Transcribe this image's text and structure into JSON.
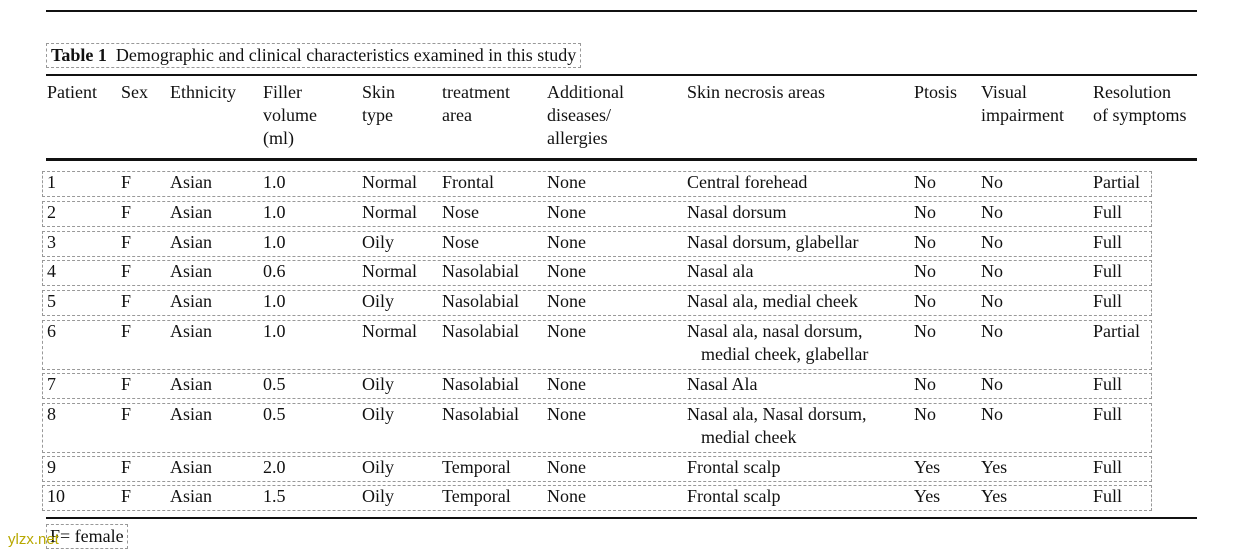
{
  "table": {
    "caption": {
      "label": "Table 1",
      "text": "Demographic and clinical characteristics examined in this study"
    },
    "header": [
      [
        "Patient"
      ],
      [
        "Sex"
      ],
      [
        "Ethnicity"
      ],
      [
        "Filler",
        "volume",
        "(ml)"
      ],
      [
        "Skin",
        "type"
      ],
      [
        "treatment",
        "area"
      ],
      [
        "Additional",
        "diseases/",
        "allergies"
      ],
      [
        "Skin necrosis areas"
      ],
      [
        "Ptosis"
      ],
      [
        "Visual",
        "impairment"
      ],
      [
        "Resolution",
        "of symptoms"
      ]
    ],
    "rows": [
      [
        "1",
        "F",
        "Asian",
        "1.0",
        "Normal",
        "Frontal",
        "None",
        [
          "Central forehead"
        ],
        "No",
        "No",
        "Partial"
      ],
      [
        "2",
        "F",
        "Asian",
        "1.0",
        "Normal",
        "Nose",
        "None",
        [
          "Nasal dorsum"
        ],
        "No",
        "No",
        "Full"
      ],
      [
        "3",
        "F",
        "Asian",
        "1.0",
        "Oily",
        "Nose",
        "None",
        [
          "Nasal dorsum, glabellar"
        ],
        "No",
        "No",
        "Full"
      ],
      [
        "4",
        "F",
        "Asian",
        "0.6",
        "Normal",
        "Nasolabial",
        "None",
        [
          "Nasal ala"
        ],
        "No",
        "No",
        "Full"
      ],
      [
        "5",
        "F",
        "Asian",
        "1.0",
        "Oily",
        "Nasolabial",
        "None",
        [
          "Nasal ala, medial cheek"
        ],
        "No",
        "No",
        "Full"
      ],
      [
        "6",
        "F",
        "Asian",
        "1.0",
        "Normal",
        "Nasolabial",
        "None",
        [
          "Nasal ala, nasal dorsum,",
          "medial cheek, glabellar"
        ],
        "No",
        "No",
        "Partial"
      ],
      [
        "7",
        "F",
        "Asian",
        "0.5",
        "Oily",
        "Nasolabial",
        "None",
        [
          "Nasal Ala"
        ],
        "No",
        "No",
        "Full"
      ],
      [
        "8",
        "F",
        "Asian",
        "0.5",
        "Oily",
        "Nasolabial",
        "None",
        [
          "Nasal ala, Nasal dorsum,",
          "medial cheek"
        ],
        "No",
        "No",
        "Full"
      ],
      [
        "9",
        "F",
        "Asian",
        "2.0",
        "Oily",
        "Temporal",
        "None",
        [
          "Frontal scalp"
        ],
        "Yes",
        "Yes",
        "Full"
      ],
      [
        "10",
        "F",
        "Asian",
        "1.5",
        "Oily",
        "Temporal",
        "None",
        [
          "Frontal scalp"
        ],
        "Yes",
        "Yes",
        "Full"
      ]
    ],
    "footnote": "F= female"
  },
  "watermark": "ylzx.net"
}
